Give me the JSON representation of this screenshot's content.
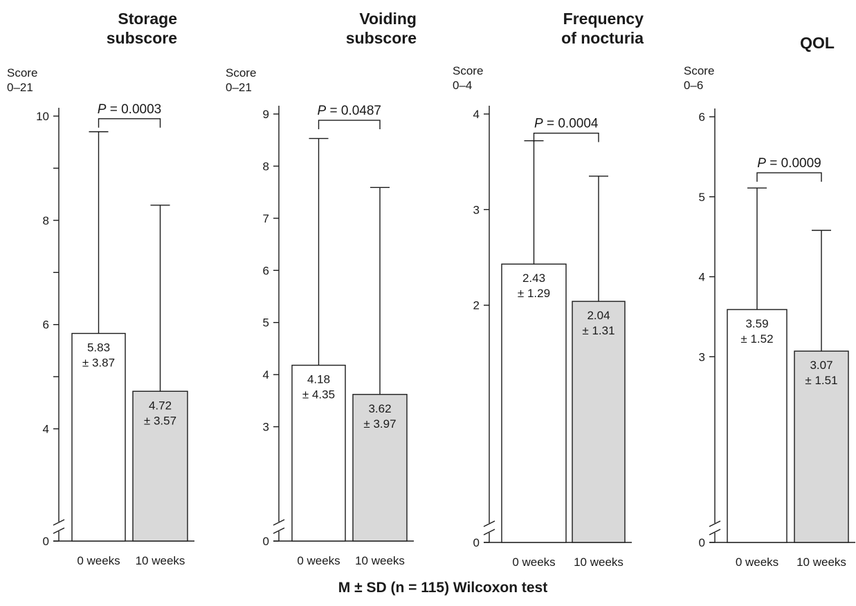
{
  "chart_data": [
    {
      "type": "bar",
      "title_lines": [
        "Storage",
        "subscore"
      ],
      "unit_lines": [
        "Score",
        "0–21"
      ],
      "categories": [
        "0 weeks",
        "10 weeks"
      ],
      "values": [
        5.83,
        4.72
      ],
      "errors": [
        3.87,
        3.57
      ],
      "value_labels": [
        [
          "5.83",
          "± 3.87"
        ],
        [
          "4.72",
          "± 3.57"
        ]
      ],
      "bar_colors": [
        "#ffffff",
        "#d9d9d9"
      ],
      "ylim": [
        3,
        10
      ],
      "axis_break": true,
      "yticks": [
        0,
        4,
        6,
        8,
        10
      ],
      "yminor": [
        5,
        7,
        9
      ],
      "p_prefix": "P",
      "p_text": " = 0.0003",
      "p_level": 9.95
    },
    {
      "type": "bar",
      "title_lines": [
        "Voiding",
        "subscore"
      ],
      "unit_lines": [
        "Score",
        "0–21"
      ],
      "categories": [
        "0 weeks",
        "10 weeks"
      ],
      "values": [
        4.18,
        3.62
      ],
      "errors": [
        4.35,
        3.97
      ],
      "value_labels": [
        [
          "4.18",
          "± 4.35"
        ],
        [
          "3.62",
          "± 3.97"
        ]
      ],
      "bar_colors": [
        "#ffffff",
        "#d9d9d9"
      ],
      "ylim": [
        2,
        9
      ],
      "axis_break": true,
      "yticks": [
        0,
        3,
        4,
        5,
        6,
        7,
        8,
        9
      ],
      "yminor": [],
      "p_prefix": "P",
      "p_text": " = 0.0487",
      "p_level": 8.88
    },
    {
      "type": "bar",
      "title_lines": [
        "Frequency",
        "of nocturia"
      ],
      "unit_lines": [
        "Score",
        "0–4"
      ],
      "categories": [
        "0 weeks",
        "10 weeks"
      ],
      "values": [
        2.43,
        2.04
      ],
      "errors": [
        1.29,
        1.31
      ],
      "value_labels": [
        [
          "2.43",
          "± 1.29"
        ],
        [
          "2.04",
          "± 1.31"
        ]
      ],
      "bar_colors": [
        "#ffffff",
        "#d9d9d9"
      ],
      "ylim": [
        1,
        4
      ],
      "axis_break": true,
      "yticks": [
        0,
        2,
        3,
        4
      ],
      "yminor": [],
      "p_prefix": "P",
      "p_text": " = 0.0004",
      "p_level": 3.8
    },
    {
      "type": "bar",
      "title_lines": [
        "QOL"
      ],
      "unit_lines": [
        "Score",
        "0–6"
      ],
      "categories": [
        "0 weeks",
        "10 weeks"
      ],
      "values": [
        3.59,
        3.07
      ],
      "errors": [
        1.52,
        1.51
      ],
      "value_labels": [
        [
          "3.59",
          "± 1.52"
        ],
        [
          "3.07",
          "± 1.51"
        ]
      ],
      "bar_colors": [
        "#ffffff",
        "#d9d9d9"
      ],
      "ylim": [
        2,
        6
      ],
      "axis_break": true,
      "yticks": [
        0,
        3,
        4,
        5,
        6
      ],
      "yminor": [],
      "p_prefix": "P",
      "p_text": " = 0.0009",
      "p_level": 5.3
    }
  ],
  "footnote": "M ± SD (n = 115) Wilcoxon test"
}
